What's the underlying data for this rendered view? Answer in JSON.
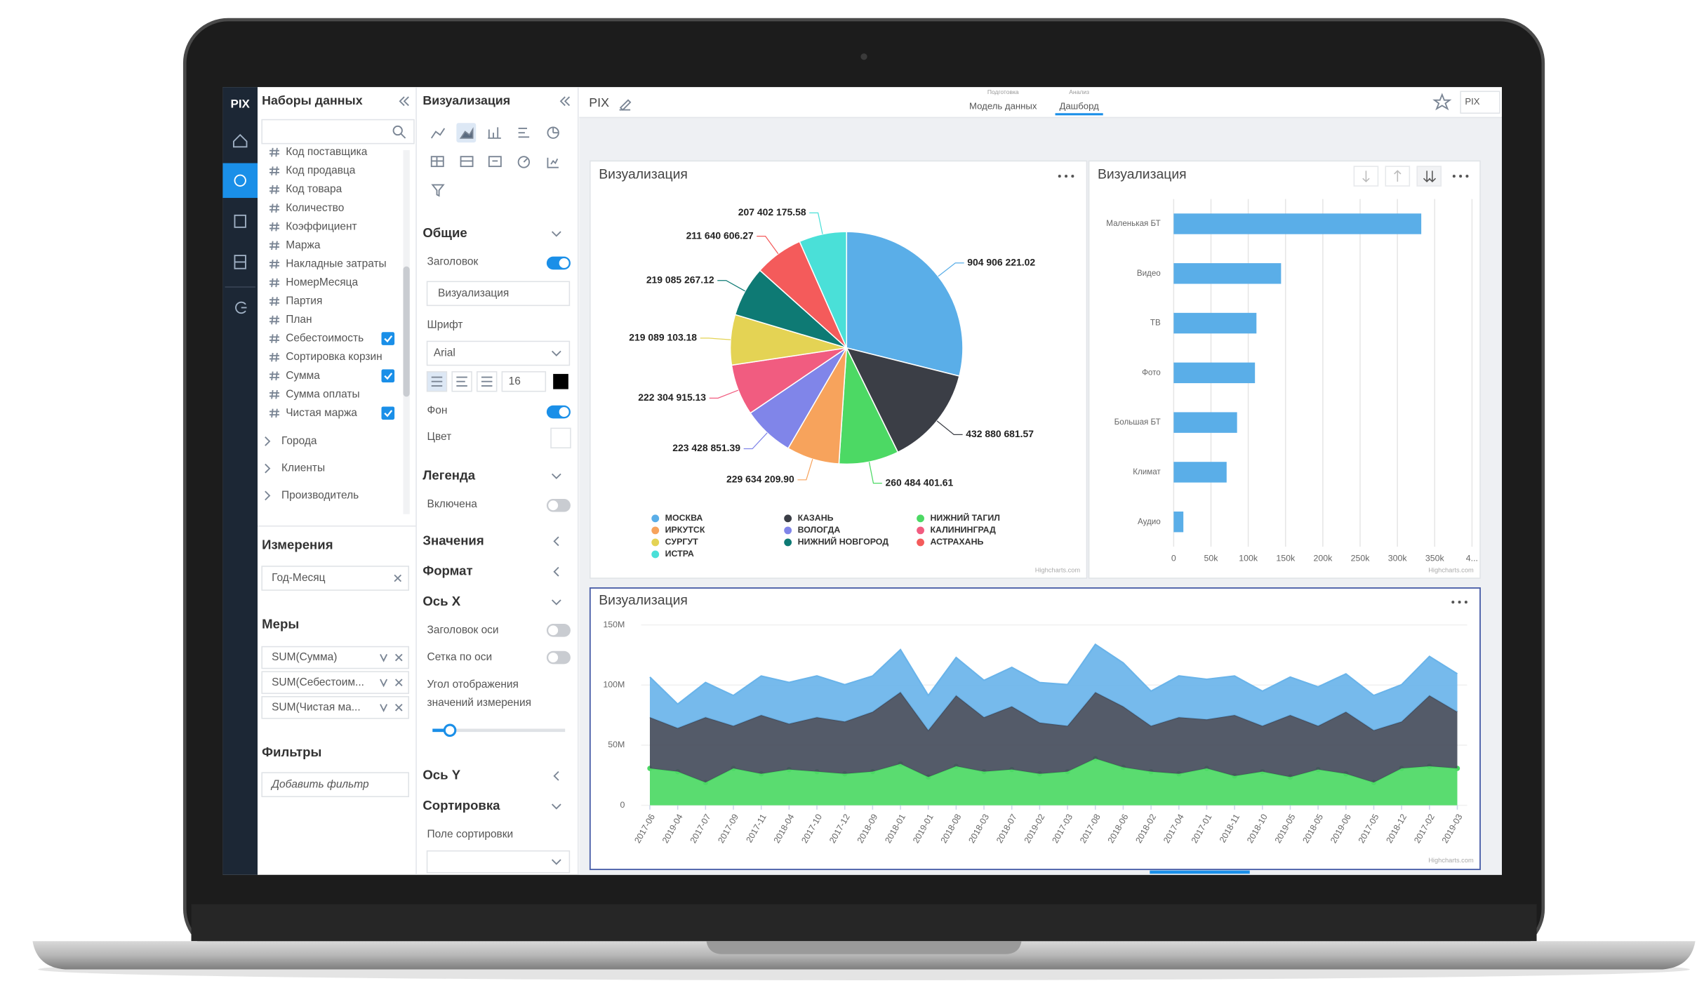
{
  "app": {
    "logo": "PIX",
    "datasets": {
      "title": "Наборы данных",
      "fields": [
        {
          "label": "Код поставщика"
        },
        {
          "label": "Код продавца"
        },
        {
          "label": "Код товара"
        },
        {
          "label": "Количество"
        },
        {
          "label": "Коэффициент"
        },
        {
          "label": "Маржа"
        },
        {
          "label": "Накладные затраты"
        },
        {
          "label": "НомерМесяца"
        },
        {
          "label": "Партия"
        },
        {
          "label": "План"
        },
        {
          "label": "Себестоимость",
          "checked": true
        },
        {
          "label": "Сортировка корзин"
        },
        {
          "label": "Сумма",
          "checked": true
        },
        {
          "label": "Сумма оплаты"
        },
        {
          "label": "Чистая маржа",
          "checked": true
        }
      ],
      "groups": [
        "Города",
        "Клиенты",
        "Производитель"
      ]
    },
    "dimensions": {
      "title": "Измерения",
      "items": [
        "Год-Месяц"
      ]
    },
    "measures": {
      "title": "Меры",
      "items": [
        "SUM(Сумма)",
        "SUM(Себестоим...",
        "SUM(Чистая ма..."
      ]
    },
    "filters": {
      "title": "Фильтры",
      "placeholder": "Добавить фильтр"
    },
    "visualization": {
      "title": "Визуализация",
      "general": "Общие",
      "header_label": "Заголовок",
      "header_on": true,
      "header_value": "Визуализация",
      "font_label": "Шрифт",
      "font": "Arial",
      "font_size": 16,
      "background_label": "Фон",
      "background_on": true,
      "color_label": "Цвет",
      "legend": "Легенда",
      "legend_enabled_label": "Включена",
      "legend_on": false,
      "values": "Значения",
      "format": "Формат",
      "x_axis": "Ось X",
      "axis_title_label": "Заголовок оси",
      "axis_title_on": false,
      "axis_grid_label": "Сетка по оси",
      "axis_grid_on": false,
      "angle_label": [
        "Угол отображения",
        "значений измерения"
      ],
      "y_axis": "Ось Y",
      "sort": "Сортировка",
      "sort_field_label": "Поле сортировки"
    },
    "topbar": {
      "project": "PIX",
      "tabs": [
        {
          "caption": "Подготовка",
          "label": "Модель данных"
        },
        {
          "caption": "Анализ",
          "label": "Дашборд",
          "active": true
        }
      ],
      "user": "PIX"
    }
  },
  "chart_data": [
    {
      "type": "pie",
      "title": "Визуализация",
      "categories": [
        "МОСКВА",
        "КАЗАНЬ",
        "НИЖНИЙ ТАГИЛ",
        "ИРКУТСК",
        "ВОЛОГДА",
        "КАЛИНИНГРАД",
        "СУРГУТ",
        "НИЖНИЙ НОВГОРОД",
        "АСТРАХАНЬ",
        "ИСТРА"
      ],
      "values": [
        904906221.02,
        432880681.57,
        260484401.61,
        229634209.9,
        223428851.39,
        222304915.13,
        219089103.18,
        219085267.12,
        211640606.27,
        207402175.58
      ],
      "value_labels": [
        "904 906 221.02",
        "432 880 681.57",
        "260 484 401.61",
        "229 634 209.90",
        "223 428 851.39",
        "222 304 915.13",
        "219 089 103.18",
        "219 085 267.12",
        "211 640 606.27",
        "207 402 175.58"
      ],
      "colors": [
        "#5aaee8",
        "#3b3e46",
        "#4cd964",
        "#f7a35c",
        "#8085e9",
        "#f15c80",
        "#e4d354",
        "#0e7a74",
        "#f45b5b",
        "#4ae0d8"
      ],
      "legend": "bottom",
      "credits": "Highcharts.com"
    },
    {
      "type": "bar",
      "orientation": "horizontal",
      "title": "Визуализация",
      "categories": [
        "Маленькая БТ",
        "Видео",
        "ТВ",
        "Фото",
        "Большая БТ",
        "Климат",
        "Аудио"
      ],
      "values": [
        332000,
        144000,
        111000,
        109000,
        85000,
        71000,
        13000
      ],
      "color": "#5aaee8",
      "xlim": [
        0,
        400000
      ],
      "xticks": [
        0,
        {
          "value": 50000,
          "label": "50k"
        },
        {
          "value": 100000,
          "label": "100k"
        },
        {
          "value": 150000,
          "label": "150k"
        },
        {
          "value": 200000,
          "label": "200k"
        },
        {
          "value": 250000,
          "label": "250k"
        },
        {
          "value": 300000,
          "label": "300k"
        },
        {
          "value": 350000,
          "label": "350k"
        },
        {
          "value": 400000,
          "label": "4..."
        }
      ],
      "grid": true,
      "credits": "Highcharts.com"
    },
    {
      "type": "area",
      "stacked": true,
      "title": "Визуализация",
      "categories": [
        "2017-06",
        "2019-04",
        "2017-07",
        "2017-09",
        "2017-11",
        "2018-04",
        "2017-10",
        "2017-12",
        "2018-09",
        "2018-01",
        "2019-01",
        "2018-08",
        "2018-03",
        "2018-07",
        "2019-02",
        "2017-03",
        "2017-08",
        "2018-06",
        "2018-02",
        "2017-04",
        "2017-01",
        "2018-11",
        "2018-10",
        "2019-05",
        "2018-05",
        "2019-06",
        "2017-05",
        "2018-12",
        "2017-02",
        "2019-03"
      ],
      "series": [
        {
          "color": "#6ab4ea",
          "values": [
            33400000,
            19900000,
            28900000,
            25300000,
            32500000,
            34400000,
            34400000,
            30700000,
            29800000,
            35300000,
            28900000,
            31600000,
            30700000,
            32500000,
            33400000,
            34400000,
            39800000,
            36200000,
            28900000,
            34400000,
            33400000,
            32500000,
            28900000,
            31600000,
            32500000,
            31600000,
            28900000,
            30700000,
            32500000,
            31600000
          ]
        },
        {
          "color": "#454d5c",
          "values": [
            42500000,
            36200000,
            54200000,
            35300000,
            48800000,
            38000000,
            45200000,
            43400000,
            49700000,
            59700000,
            38900000,
            58800000,
            45200000,
            52400000,
            42500000,
            38000000,
            55100000,
            50600000,
            38000000,
            47000000,
            40700000,
            50600000,
            38000000,
            51500000,
            36200000,
            51500000,
            43400000,
            38900000,
            58800000,
            47000000
          ]
        },
        {
          "color": "#4cd964",
          "markers": true,
          "values": [
            30700000,
            28000000,
            19000000,
            30700000,
            26200000,
            29800000,
            28000000,
            26200000,
            28000000,
            34400000,
            23500000,
            32500000,
            28000000,
            29800000,
            26200000,
            28000000,
            38900000,
            31600000,
            28000000,
            26200000,
            30700000,
            24400000,
            28000000,
            23500000,
            29800000,
            26200000,
            19000000,
            30700000,
            32500000,
            30700000
          ]
        }
      ],
      "ylim": [
        0,
        150000000
      ],
      "yticks": [
        0,
        {
          "value": 50000000,
          "label": "50M"
        },
        {
          "value": 100000000,
          "label": "100M"
        },
        {
          "value": 150000000,
          "label": "150M"
        }
      ],
      "grid": true,
      "credits": "Highcharts.com"
    }
  ]
}
